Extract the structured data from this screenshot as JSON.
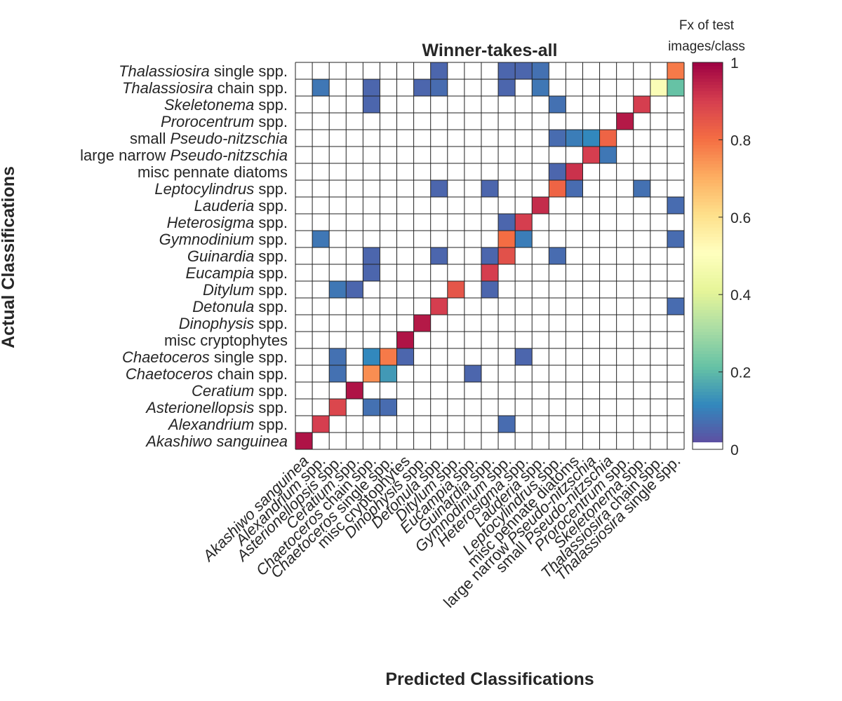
{
  "chart_data": {
    "type": "heatmap",
    "title": "Winner-takes-all",
    "xlabel": "Predicted Classifications",
    "ylabel": "Actual Classifications",
    "colorbar": {
      "label_line1": "Fx of test",
      "label_line2": "images/class",
      "ticks": [
        "0",
        "0.2",
        "0.4",
        "0.6",
        "0.8",
        "1"
      ],
      "range": [
        0,
        1
      ],
      "colormap": "spectral"
    },
    "categories": [
      {
        "italic": "Akashiwo sanguinea",
        "suffix": ""
      },
      {
        "italic": "Alexandrium",
        "suffix": " spp."
      },
      {
        "italic": "Asterionellopsis",
        "suffix": " spp."
      },
      {
        "italic": "Ceratium",
        "suffix": " spp."
      },
      {
        "italic": "Chaetoceros",
        "suffix": " chain spp."
      },
      {
        "italic": "Chaetoceros",
        "suffix": " single spp."
      },
      {
        "prefix": "misc cryptophytes",
        "italic": "",
        "suffix": ""
      },
      {
        "italic": "Dinophysis",
        "suffix": " spp."
      },
      {
        "italic": "Detonula",
        "suffix": " spp."
      },
      {
        "italic": "Ditylum",
        "suffix": " spp."
      },
      {
        "italic": "Eucampia",
        "suffix": " spp."
      },
      {
        "italic": "Guinardia",
        "suffix": " spp."
      },
      {
        "italic": "Gymnodinium",
        "suffix": " spp."
      },
      {
        "italic": "Heterosigma",
        "suffix": " spp."
      },
      {
        "italic": "Lauderia",
        "suffix": " spp."
      },
      {
        "italic": "Leptocylindrus",
        "suffix": " spp."
      },
      {
        "prefix": "misc pennate diatoms",
        "italic": "",
        "suffix": ""
      },
      {
        "prefix": "large narrow ",
        "italic": "Pseudo-nitzschia",
        "suffix": ""
      },
      {
        "prefix": "small ",
        "italic": "Pseudo-nitzschia",
        "suffix": ""
      },
      {
        "italic": "Prorocentrum",
        "suffix": " spp."
      },
      {
        "italic": "Skeletonema",
        "suffix": " spp."
      },
      {
        "italic": "Thalassiosira",
        "suffix": " chain spp."
      },
      {
        "italic": "Thalassiosira",
        "suffix": " single spp."
      }
    ],
    "cells": [
      {
        "actual": 0,
        "predicted": 0,
        "value": 0.97
      },
      {
        "actual": 1,
        "predicted": 1,
        "value": 0.9
      },
      {
        "actual": 1,
        "predicted": 12,
        "value": 0.05
      },
      {
        "actual": 2,
        "predicted": 2,
        "value": 0.88
      },
      {
        "actual": 2,
        "predicted": 4,
        "value": 0.06
      },
      {
        "actual": 2,
        "predicted": 5,
        "value": 0.05
      },
      {
        "actual": 3,
        "predicted": 3,
        "value": 0.97
      },
      {
        "actual": 4,
        "predicted": 2,
        "value": 0.06
      },
      {
        "actual": 4,
        "predicted": 4,
        "value": 0.75
      },
      {
        "actual": 4,
        "predicted": 5,
        "value": 0.13
      },
      {
        "actual": 4,
        "predicted": 10,
        "value": 0.04
      },
      {
        "actual": 5,
        "predicted": 2,
        "value": 0.06
      },
      {
        "actual": 5,
        "predicted": 4,
        "value": 0.1
      },
      {
        "actual": 5,
        "predicted": 5,
        "value": 0.78
      },
      {
        "actual": 5,
        "predicted": 6,
        "value": 0.04
      },
      {
        "actual": 5,
        "predicted": 13,
        "value": 0.04
      },
      {
        "actual": 6,
        "predicted": 6,
        "value": 0.97
      },
      {
        "actual": 7,
        "predicted": 7,
        "value": 0.96
      },
      {
        "actual": 8,
        "predicted": 8,
        "value": 0.9
      },
      {
        "actual": 8,
        "predicted": 22,
        "value": 0.05
      },
      {
        "actual": 9,
        "predicted": 2,
        "value": 0.07
      },
      {
        "actual": 9,
        "predicted": 3,
        "value": 0.04
      },
      {
        "actual": 9,
        "predicted": 9,
        "value": 0.85
      },
      {
        "actual": 9,
        "predicted": 11,
        "value": 0.04
      },
      {
        "actual": 10,
        "predicted": 4,
        "value": 0.04
      },
      {
        "actual": 10,
        "predicted": 11,
        "value": 0.9
      },
      {
        "actual": 11,
        "predicted": 4,
        "value": 0.04
      },
      {
        "actual": 11,
        "predicted": 8,
        "value": 0.04
      },
      {
        "actual": 11,
        "predicted": 11,
        "value": 0.04
      },
      {
        "actual": 11,
        "predicted": 12,
        "value": 0.86
      },
      {
        "actual": 11,
        "predicted": 15,
        "value": 0.05
      },
      {
        "actual": 12,
        "predicted": 1,
        "value": 0.07
      },
      {
        "actual": 12,
        "predicted": 12,
        "value": 0.8
      },
      {
        "actual": 12,
        "predicted": 13,
        "value": 0.08
      },
      {
        "actual": 12,
        "predicted": 22,
        "value": 0.05
      },
      {
        "actual": 13,
        "predicted": 12,
        "value": 0.04
      },
      {
        "actual": 13,
        "predicted": 13,
        "value": 0.9
      },
      {
        "actual": 14,
        "predicted": 14,
        "value": 0.93
      },
      {
        "actual": 14,
        "predicted": 22,
        "value": 0.05
      },
      {
        "actual": 15,
        "predicted": 8,
        "value": 0.04
      },
      {
        "actual": 15,
        "predicted": 11,
        "value": 0.04
      },
      {
        "actual": 15,
        "predicted": 15,
        "value": 0.82
      },
      {
        "actual": 15,
        "predicted": 16,
        "value": 0.05
      },
      {
        "actual": 15,
        "predicted": 20,
        "value": 0.06
      },
      {
        "actual": 16,
        "predicted": 15,
        "value": 0.04
      },
      {
        "actual": 16,
        "predicted": 16,
        "value": 0.92
      },
      {
        "actual": 17,
        "predicted": 17,
        "value": 0.9
      },
      {
        "actual": 17,
        "predicted": 18,
        "value": 0.07
      },
      {
        "actual": 18,
        "predicted": 15,
        "value": 0.05
      },
      {
        "actual": 18,
        "predicted": 16,
        "value": 0.08
      },
      {
        "actual": 18,
        "predicted": 17,
        "value": 0.1
      },
      {
        "actual": 18,
        "predicted": 18,
        "value": 0.82
      },
      {
        "actual": 19,
        "predicted": 19,
        "value": 0.96
      },
      {
        "actual": 20,
        "predicted": 4,
        "value": 0.04
      },
      {
        "actual": 20,
        "predicted": 15,
        "value": 0.06
      },
      {
        "actual": 20,
        "predicted": 20,
        "value": 0.9
      },
      {
        "actual": 21,
        "predicted": 1,
        "value": 0.07
      },
      {
        "actual": 21,
        "predicted": 4,
        "value": 0.04
      },
      {
        "actual": 21,
        "predicted": 7,
        "value": 0.04
      },
      {
        "actual": 21,
        "predicted": 8,
        "value": 0.05
      },
      {
        "actual": 21,
        "predicted": 12,
        "value": 0.04
      },
      {
        "actual": 21,
        "predicted": 14,
        "value": 0.07
      },
      {
        "actual": 21,
        "predicted": 21,
        "value": 0.48
      },
      {
        "actual": 21,
        "predicted": 22,
        "value": 0.2
      },
      {
        "actual": 22,
        "predicted": 8,
        "value": 0.04
      },
      {
        "actual": 22,
        "predicted": 12,
        "value": 0.04
      },
      {
        "actual": 22,
        "predicted": 13,
        "value": 0.04
      },
      {
        "actual": 22,
        "predicted": 14,
        "value": 0.06
      },
      {
        "actual": 22,
        "predicted": 22,
        "value": 0.78
      }
    ]
  }
}
